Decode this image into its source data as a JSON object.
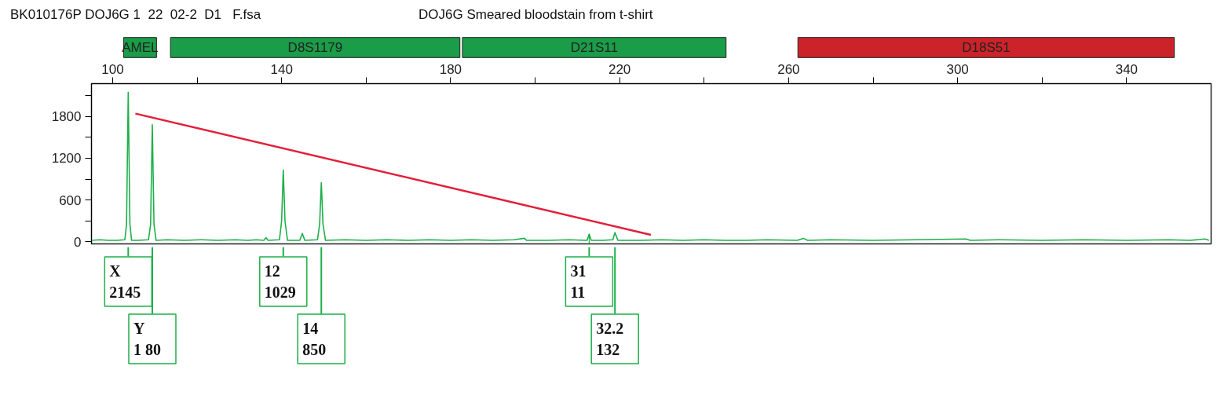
{
  "chart_data": [
    {
      "type": "bar",
      "orientation": "horizontal",
      "title": "BK010176P DOJ6G 1  22  02-2  D1   F.fsa",
      "subtitle": "DOJ6G Smeared bloodstain from t-shirt",
      "categories": [
        null
      ],
      "xlim": [
        95,
        360
      ],
      "tick_labels": false,
      "series": [
        {
          "name": "AMEL",
          "color": "#1a9c48",
          "base": [
            102.6
          ],
          "values": [
            7.8
          ]
        },
        {
          "name": "D8S1179",
          "color": "#1a9c48",
          "base": [
            113.7
          ],
          "values": [
            68.5
          ]
        },
        {
          "name": "D21S11",
          "color": "#1a9c48",
          "base": [
            182.8
          ],
          "values": [
            62.4
          ]
        },
        {
          "name": "D18S51",
          "color": "#cc2229",
          "base": [
            262.2
          ],
          "values": [
            89.1
          ]
        }
      ]
    },
    {
      "type": "line",
      "xlim": [
        95,
        360
      ],
      "xticks": [
        100,
        {
          "value": 120,
          "label": null
        },
        140,
        {
          "value": 160,
          "label": null
        },
        180,
        {
          "value": 200,
          "label": null
        },
        220,
        {
          "value": 240,
          "label": null
        },
        260,
        {
          "value": 280,
          "label": null
        },
        300,
        {
          "value": 320,
          "label": null
        },
        340
      ],
      "ylim": [
        -30,
        2270
      ],
      "yticks": [
        0,
        {
          "value": 300,
          "label": null
        },
        600,
        {
          "value": 900,
          "label": null
        },
        1200,
        {
          "value": 1500,
          "label": null
        },
        1800,
        {
          "value": 2100,
          "label": null
        }
      ],
      "grid": false,
      "series": [
        {
          "color": "#1db04a",
          "x": [
            95,
            97,
            99,
            101,
            102.9,
            103.3,
            103.7,
            104.1,
            104.5,
            106,
            108.5,
            109.0,
            109.4,
            109.8,
            110.3,
            113,
            117,
            121,
            125,
            129,
            132,
            134,
            135.8,
            136.3,
            136.8,
            139.5,
            140.0,
            140.4,
            140.8,
            141.4,
            144.3,
            144.9,
            145.5,
            148.5,
            149.0,
            149.4,
            149.8,
            150.4,
            155,
            160,
            165,
            170,
            175,
            180,
            185,
            190,
            195,
            197.5,
            198,
            203,
            208,
            212.3,
            212.8,
            213.3,
            216,
            218.4,
            218.9,
            219.6,
            225,
            230,
            235,
            240,
            245,
            250,
            255,
            262,
            263.5,
            264.5,
            270,
            280,
            290,
            302,
            303,
            310,
            320,
            330,
            340,
            350,
            355,
            358.6,
            359.5
          ],
          "values": [
            20,
            30,
            20,
            20,
            30,
            250,
            2145,
            250,
            20,
            20,
            30,
            250,
            1680,
            250,
            20,
            30,
            20,
            30,
            20,
            30,
            20,
            30,
            20,
            60,
            20,
            30,
            300,
            1029,
            300,
            20,
            20,
            120,
            20,
            30,
            250,
            850,
            250,
            20,
            30,
            20,
            30,
            20,
            30,
            20,
            30,
            20,
            30,
            50,
            20,
            20,
            30,
            20,
            110,
            20,
            20,
            30,
            132,
            20,
            20,
            30,
            20,
            30,
            20,
            20,
            30,
            20,
            50,
            20,
            30,
            20,
            30,
            40,
            20,
            30,
            20,
            30,
            20,
            30,
            20,
            40,
            20
          ]
        },
        {
          "type": "line",
          "color": "#e31e3a",
          "x": [
            105.4,
            227.4
          ],
          "values": [
            1840,
            100
          ]
        }
      ],
      "annotations": [
        {
          "text": "X\n2145",
          "x": 103.7
        },
        {
          "text": "Y\n1  80",
          "x": 109.4
        },
        {
          "text": "12\n1029",
          "x": 140.4
        },
        {
          "text": "14\n850",
          "x": 149.4
        },
        {
          "text": "31\n11",
          "x": 212.8,
          "y": 110
        },
        {
          "text": "32.2\n132",
          "x": 218.9
        }
      ]
    }
  ]
}
